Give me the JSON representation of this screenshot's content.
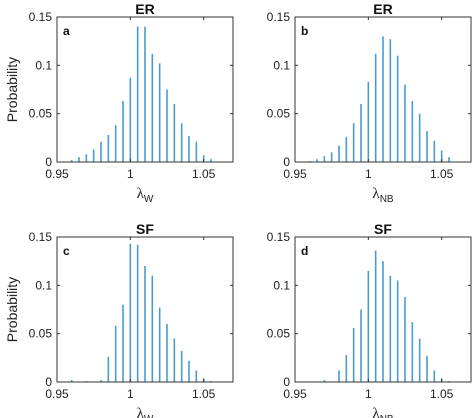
{
  "chart_data": [
    {
      "type": "bar",
      "panel": "a",
      "title": "ER",
      "ylabel": "Probability",
      "xlabel": "λ",
      "xlabel_sub": "W",
      "xlim": [
        0.95,
        1.07
      ],
      "ylim": [
        0,
        0.15
      ],
      "xticks": [
        "0.95",
        "1",
        "1.05"
      ],
      "yticks": [
        "0",
        "0.05",
        "0.1",
        "0.15"
      ],
      "x": [
        0.96,
        0.965,
        0.97,
        0.975,
        0.98,
        0.985,
        0.99,
        0.995,
        1.0,
        1.005,
        1.01,
        1.015,
        1.02,
        1.025,
        1.03,
        1.035,
        1.04,
        1.045,
        1.05,
        1.055
      ],
      "values": [
        0.002,
        0.005,
        0.008,
        0.013,
        0.021,
        0.028,
        0.038,
        0.063,
        0.087,
        0.14,
        0.14,
        0.112,
        0.102,
        0.075,
        0.06,
        0.04,
        0.027,
        0.021,
        0.007,
        0.003
      ]
    },
    {
      "type": "bar",
      "panel": "b",
      "title": "ER",
      "ylabel": "",
      "xlabel": "λ",
      "xlabel_sub": "NB",
      "xlim": [
        0.95,
        1.07
      ],
      "ylim": [
        0,
        0.15
      ],
      "xticks": [
        "0.95",
        "1",
        "1.05"
      ],
      "yticks": [
        "0",
        "0.05",
        "0.1",
        "0.15"
      ],
      "x": [
        0.96,
        0.965,
        0.97,
        0.975,
        0.98,
        0.985,
        0.99,
        0.995,
        1.0,
        1.005,
        1.01,
        1.015,
        1.02,
        1.025,
        1.03,
        1.035,
        1.04,
        1.045,
        1.05,
        1.055
      ],
      "values": [
        0.001,
        0.003,
        0.006,
        0.01,
        0.017,
        0.026,
        0.04,
        0.06,
        0.083,
        0.112,
        0.13,
        0.127,
        0.11,
        0.08,
        0.063,
        0.05,
        0.032,
        0.022,
        0.012,
        0.005
      ]
    },
    {
      "type": "bar",
      "panel": "c",
      "title": "SF",
      "ylabel": "Probability",
      "xlabel": "λ",
      "xlabel_sub": "W",
      "xlim": [
        0.95,
        1.07
      ],
      "ylim": [
        0,
        0.15
      ],
      "xticks": [
        "0.95",
        "1",
        "1.05"
      ],
      "yticks": [
        "0",
        "0.05",
        "0.1",
        "0.15"
      ],
      "x": [
        0.96,
        0.965,
        0.97,
        0.975,
        0.98,
        0.985,
        0.99,
        0.995,
        1.0,
        1.005,
        1.01,
        1.015,
        1.02,
        1.025,
        1.03,
        1.035,
        1.04,
        1.045,
        1.05,
        1.055
      ],
      "values": [
        0.002,
        0.0,
        0.001,
        0.0,
        0.002,
        0.026,
        0.058,
        0.08,
        0.143,
        0.142,
        0.12,
        0.11,
        0.077,
        0.06,
        0.045,
        0.032,
        0.022,
        0.012,
        0.004,
        0.001
      ]
    },
    {
      "type": "bar",
      "panel": "d",
      "title": "SF",
      "ylabel": "",
      "xlabel": "λ",
      "xlabel_sub": "NB",
      "xlim": [
        0.95,
        1.07
      ],
      "ylim": [
        0,
        0.15
      ],
      "xticks": [
        "0.95",
        "1",
        "1.05"
      ],
      "yticks": [
        "0",
        "0.05",
        "0.1",
        "0.15"
      ],
      "x": [
        0.96,
        0.965,
        0.97,
        0.975,
        0.98,
        0.985,
        0.99,
        0.995,
        1.0,
        1.005,
        1.01,
        1.015,
        1.02,
        1.025,
        1.03,
        1.035,
        1.04,
        1.045,
        1.05,
        1.055
      ],
      "values": [
        0.0,
        0.0,
        0.002,
        0.0,
        0.012,
        0.028,
        0.056,
        0.075,
        0.115,
        0.136,
        0.125,
        0.11,
        0.105,
        0.088,
        0.062,
        0.045,
        0.027,
        0.012,
        0.004,
        0.001
      ]
    }
  ],
  "colors": {
    "bar": "#4a9ad1",
    "axis": "#333333"
  }
}
